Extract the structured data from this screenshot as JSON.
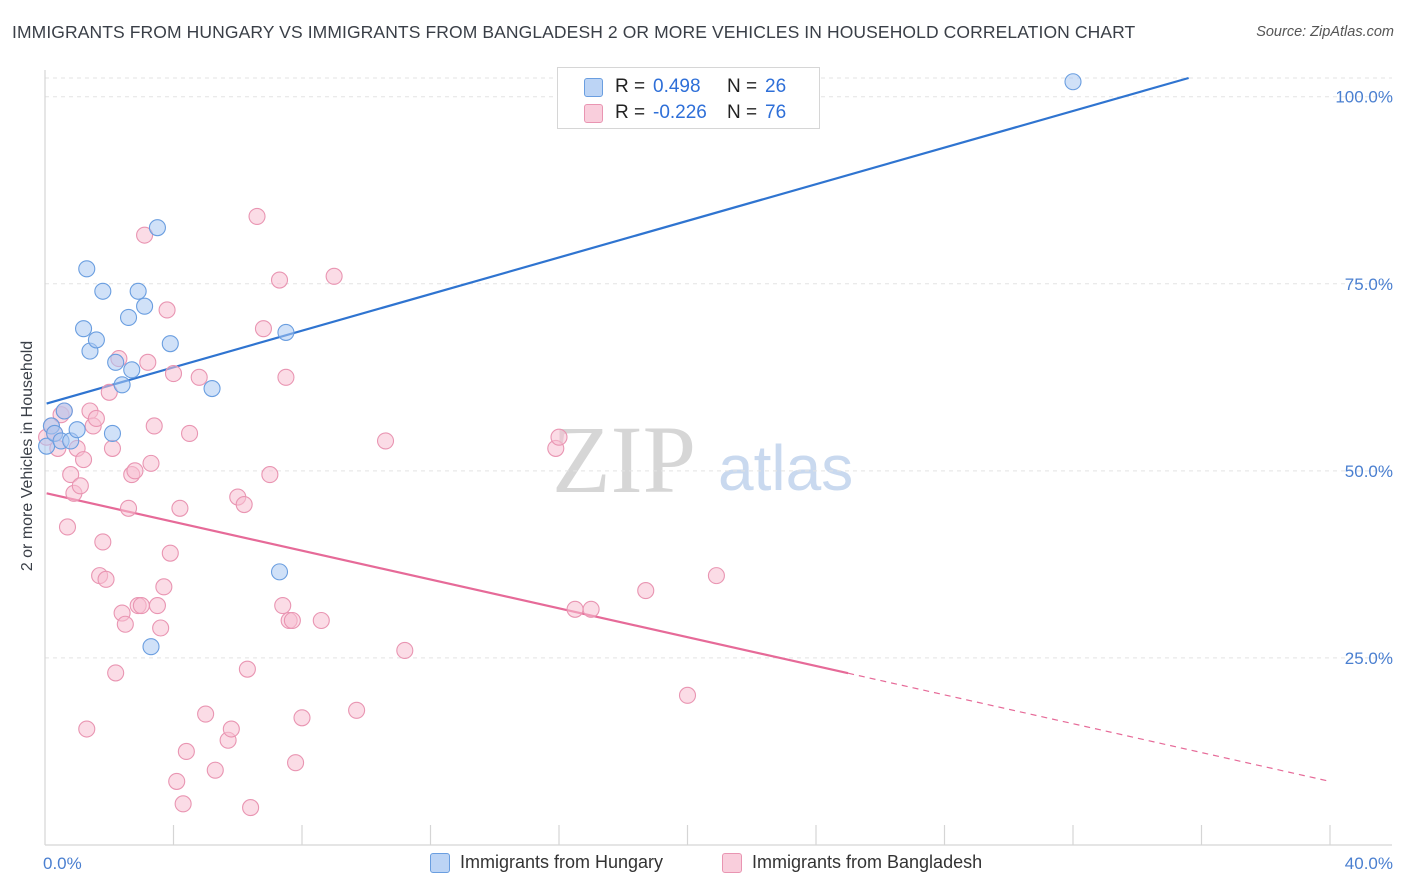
{
  "header": {
    "title": "IMMIGRANTS FROM HUNGARY VS IMMIGRANTS FROM BANGLADESH 2 OR MORE VEHICLES IN HOUSEHOLD CORRELATION CHART",
    "source": "Source: ZipAtlas.com"
  },
  "colors": {
    "hungary_fill": "#a9c8f2",
    "hungary_stroke": "#6a9ee0",
    "hungary_line": "#2f74d0",
    "bangladesh_fill": "#f7c0d2",
    "bangladesh_stroke": "#e995b2",
    "bangladesh_line": "#e66a98",
    "axis_label": "#4a7fd0"
  },
  "legend_top": {
    "rows": [
      {
        "r_label": "R =",
        "r_value": "0.498",
        "n_label": "N =",
        "n_value": "26"
      },
      {
        "r_label": "R =",
        "r_value": "-0.226",
        "n_label": "N =",
        "n_value": "76"
      }
    ]
  },
  "legend_bottom": {
    "hungary": "Immigrants from Hungary",
    "bangladesh": "Immigrants from Bangladesh"
  },
  "watermark": {
    "zip": "ZIP",
    "atlas": "atlas"
  },
  "chart_data": {
    "type": "scatter",
    "title": "IMMIGRANTS FROM HUNGARY VS IMMIGRANTS FROM BANGLADESH 2 OR MORE VEHICLES IN HOUSEHOLD CORRELATION CHART",
    "xlabel": "",
    "ylabel": "2 or more Vehicles in Household",
    "xlim": [
      0,
      40
    ],
    "ylim": [
      0,
      102.5
    ],
    "x_tick_labels": [
      "0.0%",
      "40.0%"
    ],
    "y_tick_labels": [
      {
        "value": 25,
        "label": "25.0%"
      },
      {
        "value": 50,
        "label": "50.0%"
      },
      {
        "value": 75,
        "label": "75.0%"
      },
      {
        "value": 100,
        "label": "100.0%"
      }
    ],
    "grid": true,
    "legend_position": "top-center",
    "series": [
      {
        "name": "Immigrants from Hungary",
        "R": 0.498,
        "N": 26,
        "trend": {
          "x0": 0.05,
          "y0": 59.0,
          "x1": 35.6,
          "y1": 102.5,
          "dashed_from": null
        },
        "points": [
          [
            0.05,
            53.3
          ],
          [
            0.2,
            56.0
          ],
          [
            0.3,
            55.0
          ],
          [
            0.5,
            54.0
          ],
          [
            0.6,
            58.0
          ],
          [
            0.8,
            54.0
          ],
          [
            1.0,
            55.5
          ],
          [
            1.2,
            69.0
          ],
          [
            1.3,
            77.0
          ],
          [
            1.4,
            66.0
          ],
          [
            1.6,
            67.5
          ],
          [
            1.8,
            74.0
          ],
          [
            2.1,
            55.0
          ],
          [
            2.2,
            64.5
          ],
          [
            2.4,
            61.5
          ],
          [
            2.6,
            70.5
          ],
          [
            2.7,
            63.5
          ],
          [
            2.9,
            74.0
          ],
          [
            3.1,
            72.0
          ],
          [
            3.3,
            26.5
          ],
          [
            3.5,
            82.5
          ],
          [
            3.9,
            67.0
          ],
          [
            5.2,
            61.0
          ],
          [
            7.5,
            68.5
          ],
          [
            7.3,
            36.5
          ],
          [
            32.0,
            102.0
          ]
        ]
      },
      {
        "name": "Immigrants from Bangladesh",
        "R": -0.226,
        "N": 76,
        "trend": {
          "x0": 0.05,
          "y0": 47.0,
          "x1": 40.0,
          "y1": 8.5,
          "dashed_from": 25.0
        },
        "points": [
          [
            0.05,
            54.5
          ],
          [
            0.2,
            56.0
          ],
          [
            0.3,
            55.0
          ],
          [
            0.4,
            53.0
          ],
          [
            0.5,
            57.5
          ],
          [
            0.6,
            58.0
          ],
          [
            0.7,
            42.5
          ],
          [
            0.8,
            49.5
          ],
          [
            0.9,
            47.0
          ],
          [
            1.0,
            53.0
          ],
          [
            1.1,
            48.0
          ],
          [
            1.2,
            51.5
          ],
          [
            1.3,
            15.5
          ],
          [
            1.4,
            58.0
          ],
          [
            1.5,
            56.0
          ],
          [
            1.6,
            57.0
          ],
          [
            1.7,
            36.0
          ],
          [
            1.8,
            40.5
          ],
          [
            1.9,
            35.5
          ],
          [
            2.0,
            60.5
          ],
          [
            2.1,
            53.0
          ],
          [
            2.2,
            23.0
          ],
          [
            2.3,
            65.0
          ],
          [
            2.4,
            31.0
          ],
          [
            2.5,
            29.5
          ],
          [
            2.6,
            45.0
          ],
          [
            2.7,
            49.5
          ],
          [
            2.8,
            50.0
          ],
          [
            2.9,
            32.0
          ],
          [
            3.0,
            32.0
          ],
          [
            3.1,
            81.5
          ],
          [
            3.2,
            64.5
          ],
          [
            3.3,
            51.0
          ],
          [
            3.4,
            56.0
          ],
          [
            3.5,
            32.0
          ],
          [
            3.6,
            29.0
          ],
          [
            3.7,
            34.5
          ],
          [
            3.8,
            71.5
          ],
          [
            3.9,
            39.0
          ],
          [
            4.0,
            63.0
          ],
          [
            4.1,
            8.5
          ],
          [
            4.2,
            45.0
          ],
          [
            4.3,
            5.5
          ],
          [
            4.4,
            12.5
          ],
          [
            4.5,
            55.0
          ],
          [
            4.8,
            62.5
          ],
          [
            5.0,
            17.5
          ],
          [
            5.3,
            10.0
          ],
          [
            5.7,
            14.0
          ],
          [
            5.8,
            15.5
          ],
          [
            6.0,
            46.5
          ],
          [
            6.2,
            45.5
          ],
          [
            6.3,
            23.5
          ],
          [
            6.4,
            5.0
          ],
          [
            6.6,
            84.0
          ],
          [
            6.8,
            69.0
          ],
          [
            7.0,
            49.5
          ],
          [
            7.3,
            75.5
          ],
          [
            7.4,
            32.0
          ],
          [
            7.5,
            62.5
          ],
          [
            7.6,
            30.0
          ],
          [
            7.7,
            30.0
          ],
          [
            7.8,
            11.0
          ],
          [
            8.0,
            17.0
          ],
          [
            8.6,
            30.0
          ],
          [
            9.0,
            76.0
          ],
          [
            9.7,
            18.0
          ],
          [
            10.6,
            54.0
          ],
          [
            11.2,
            26.0
          ],
          [
            15.9,
            53.0
          ],
          [
            16.0,
            54.5
          ],
          [
            16.5,
            31.5
          ],
          [
            17.0,
            31.5
          ],
          [
            18.7,
            34.0
          ],
          [
            20.0,
            20.0
          ],
          [
            20.9,
            36.0
          ]
        ]
      }
    ]
  }
}
